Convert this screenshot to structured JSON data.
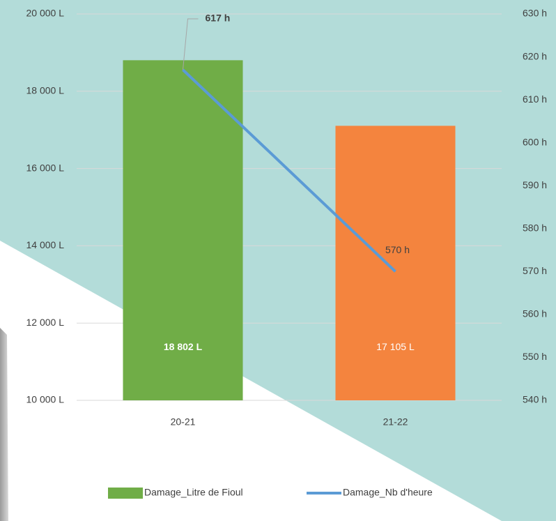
{
  "chart_data": {
    "type": "bar",
    "categories": [
      "20-21",
      "21-22"
    ],
    "series": [
      {
        "name": "Damage_Litre de Fioul",
        "color": "#70ad47",
        "colors": [
          "#70ad47",
          "#f4843e"
        ],
        "values": [
          18802,
          17105
        ],
        "value_labels": [
          "18 802 L",
          "17 105 L"
        ]
      },
      {
        "name": "Damage_Nb d'heure",
        "type": "line",
        "axis": "y2",
        "color": "#5b9bd5",
        "values": [
          617,
          570
        ],
        "value_labels": [
          "617 h",
          "570 h"
        ]
      }
    ],
    "ylim": [
      10000,
      20000
    ],
    "yticks": [
      {
        "value": 10000,
        "label": "10 000 L"
      },
      {
        "value": 12000,
        "label": "12 000 L"
      },
      {
        "value": 14000,
        "label": "14 000 L"
      },
      {
        "value": 16000,
        "label": "16 000 L"
      },
      {
        "value": 18000,
        "label": "18 000 L"
      },
      {
        "value": 20000,
        "label": "20 000 L"
      }
    ],
    "y2lim": [
      540,
      630
    ],
    "y2ticks": [
      {
        "value": 540,
        "label": "540 h"
      },
      {
        "value": 550,
        "label": "550 h"
      },
      {
        "value": 560,
        "label": "560 h"
      },
      {
        "value": 570,
        "label": "570 h"
      },
      {
        "value": 580,
        "label": "580 h"
      },
      {
        "value": 590,
        "label": "590 h"
      },
      {
        "value": 600,
        "label": "600 h"
      },
      {
        "value": 610,
        "label": "610 h"
      },
      {
        "value": 620,
        "label": "620 h"
      },
      {
        "value": 630,
        "label": "630 h"
      }
    ],
    "grid": true,
    "legend": "bottom"
  }
}
